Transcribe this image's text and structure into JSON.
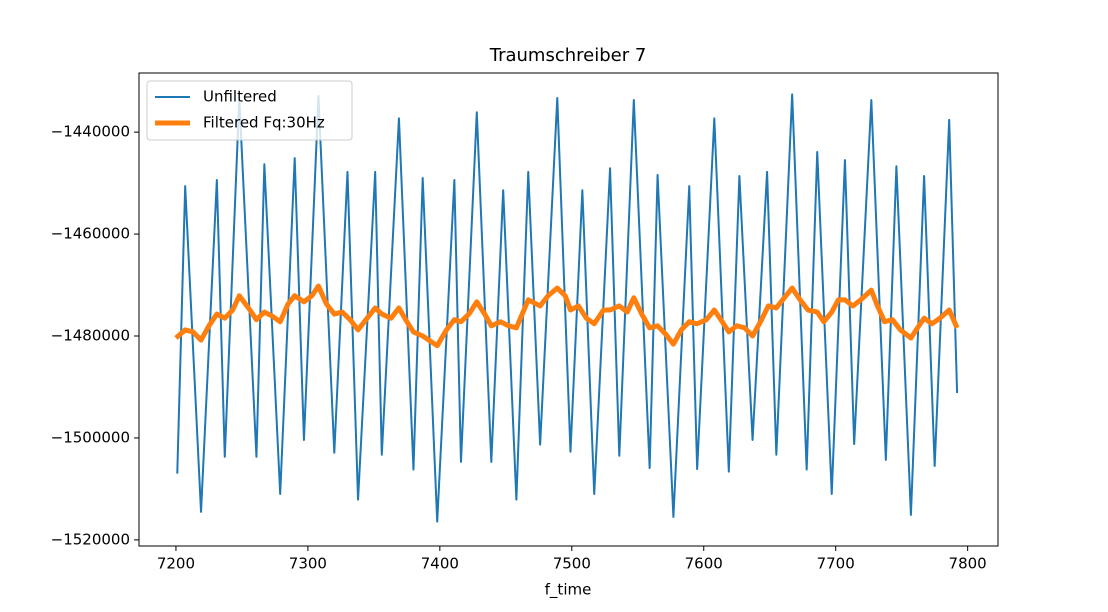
{
  "chart_data": {
    "type": "line",
    "title": "Traumschreiber 7",
    "x_label": "f_time",
    "xlim": [
      7172,
      7823
    ],
    "ylim": [
      -1521200,
      -1428400
    ],
    "xticks": [
      7200,
      7300,
      7400,
      7500,
      7600,
      7700,
      7800
    ],
    "yticks": [
      {
        "value": -1440000,
        "label": "−1440000"
      },
      {
        "value": -1460000,
        "label": "−1460000"
      },
      {
        "value": -1480000,
        "label": "−1480000"
      },
      {
        "value": -1500000,
        "label": "−1500000"
      },
      {
        "value": -1520000,
        "label": "−1520000"
      }
    ],
    "legend": "upper left",
    "series": [
      {
        "name": "Unfiltered",
        "color": "#1f77b4",
        "linewidth": 2,
        "x": [
          7201,
          7207,
          7219,
          7231,
          7237,
          7248,
          7261,
          7267,
          7279,
          7290,
          7297,
          7308,
          7320,
          7330,
          7338,
          7351,
          7356,
          7369,
          7380,
          7387,
          7398,
          7411,
          7416,
          7428,
          7439,
          7448,
          7458,
          7467,
          7476,
          7489,
          7499,
          7508,
          7517,
          7529,
          7536,
          7547,
          7559,
          7565,
          7577,
          7589,
          7595,
          7608,
          7619,
          7627,
          7637,
          7648,
          7655,
          7667,
          7678,
          7686,
          7697,
          7707,
          7714,
          7727,
          7738,
          7746,
          7757,
          7767,
          7775,
          7786,
          7792
        ],
        "values": [
          -1507000,
          -1450600,
          -1514500,
          -1449400,
          -1503700,
          -1433300,
          -1503700,
          -1446300,
          -1511000,
          -1445100,
          -1500400,
          -1432900,
          -1502900,
          -1447800,
          -1512100,
          -1447800,
          -1503300,
          -1437300,
          -1506200,
          -1449000,
          -1516400,
          -1449400,
          -1504700,
          -1436100,
          -1504700,
          -1451400,
          -1512100,
          -1447800,
          -1501300,
          -1433300,
          -1502700,
          -1451400,
          -1511000,
          -1447100,
          -1503500,
          -1433700,
          -1505900,
          -1448400,
          -1515500,
          -1450600,
          -1506100,
          -1437300,
          -1506600,
          -1448600,
          -1500400,
          -1447800,
          -1503300,
          -1432600,
          -1506200,
          -1443900,
          -1511000,
          -1445500,
          -1501200,
          -1433700,
          -1504300,
          -1446700,
          -1515100,
          -1448600,
          -1505500,
          -1437600,
          -1491200
        ]
      },
      {
        "name": "Filtered Fq:30Hz",
        "color": "#ff7f0e",
        "linewidth": 5,
        "x": [
          7200,
          7207,
          7213,
          7219,
          7225,
          7231,
          7237,
          7243,
          7248,
          7255,
          7261,
          7267,
          7273,
          7279,
          7285,
          7290,
          7297,
          7303,
          7308,
          7314,
          7320,
          7326,
          7332,
          7338,
          7344,
          7351,
          7356,
          7363,
          7369,
          7375,
          7380,
          7387,
          7398,
          7405,
          7411,
          7416,
          7422,
          7428,
          7434,
          7439,
          7446,
          7452,
          7458,
          7467,
          7476,
          7482,
          7489,
          7495,
          7499,
          7505,
          7511,
          7517,
          7524,
          7529,
          7536,
          7542,
          7547,
          7553,
          7559,
          7565,
          7571,
          7577,
          7583,
          7589,
          7595,
          7602,
          7608,
          7614,
          7619,
          7625,
          7631,
          7637,
          7643,
          7649,
          7655,
          7661,
          7667,
          7673,
          7679,
          7686,
          7691,
          7697,
          7702,
          7707,
          7713,
          7719,
          7727,
          7731,
          7737,
          7743,
          7749,
          7757,
          7762,
          7767,
          7773,
          7779,
          7786,
          7792
        ],
        "values": [
          -1480400,
          -1478800,
          -1479200,
          -1480800,
          -1478000,
          -1475700,
          -1476500,
          -1474900,
          -1472100,
          -1474500,
          -1476800,
          -1475300,
          -1476100,
          -1477200,
          -1473700,
          -1472100,
          -1473300,
          -1472100,
          -1470200,
          -1473700,
          -1475700,
          -1475300,
          -1476800,
          -1478800,
          -1476800,
          -1474500,
          -1475700,
          -1476500,
          -1474500,
          -1477200,
          -1479200,
          -1480000,
          -1481900,
          -1478800,
          -1476800,
          -1477200,
          -1475700,
          -1473300,
          -1475700,
          -1478000,
          -1477200,
          -1478000,
          -1478400,
          -1472900,
          -1474100,
          -1472100,
          -1470600,
          -1472100,
          -1474900,
          -1474100,
          -1476500,
          -1477600,
          -1474900,
          -1474900,
          -1474100,
          -1475300,
          -1472500,
          -1475700,
          -1478400,
          -1478000,
          -1479600,
          -1481600,
          -1478800,
          -1477200,
          -1477600,
          -1476800,
          -1474900,
          -1477200,
          -1479200,
          -1478000,
          -1478400,
          -1480000,
          -1477200,
          -1474100,
          -1474500,
          -1472500,
          -1470600,
          -1472900,
          -1474900,
          -1475300,
          -1477200,
          -1475300,
          -1472900,
          -1472900,
          -1474100,
          -1472900,
          -1471000,
          -1473700,
          -1477200,
          -1476800,
          -1478800,
          -1480400,
          -1478400,
          -1476500,
          -1477600,
          -1476500,
          -1474900,
          -1478400
        ]
      }
    ]
  }
}
